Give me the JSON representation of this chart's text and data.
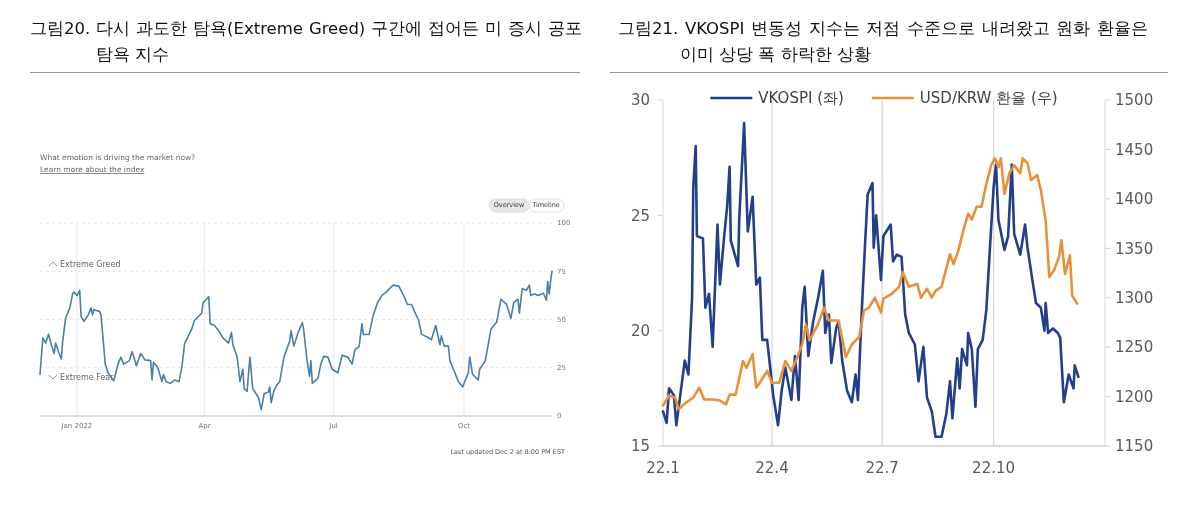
{
  "chart_data": [
    {
      "type": "line",
      "title": "그림20. 다시 과도한 탐욕(Extreme Greed) 구간에 접어든 미 증시 공포 탐욕 지수",
      "subtitle": "What emotion is driving the market now?",
      "annotations": [
        "Learn more about the index",
        "Overview",
        "Timeline",
        "Extreme Greed",
        "Extreme Fear",
        "Last updated Dec 2 at 8:00 PM EST"
      ],
      "x": [
        "2021-12-06",
        "2021-12-08",
        "2021-12-10",
        "2021-12-12",
        "2021-12-14",
        "2021-12-16",
        "2021-12-17",
        "2021-12-19",
        "2021-12-21",
        "2021-12-22",
        "2021-12-24",
        "2021-12-27",
        "2021-12-29",
        "2021-12-30",
        "2022-01-01",
        "2022-01-03",
        "2022-01-04",
        "2022-01-06",
        "2022-01-09",
        "2022-01-11",
        "2022-01-12",
        "2022-01-13",
        "2022-01-17",
        "2022-01-18",
        "2022-01-21",
        "2022-01-23",
        "2022-01-27",
        "2022-01-30",
        "2022-02-01",
        "2022-02-03",
        "2022-02-07",
        "2022-02-09",
        "2022-02-12",
        "2022-02-15",
        "2022-02-18",
        "2022-02-22",
        "2022-02-23",
        "2022-02-24",
        "2022-02-27",
        "2022-03-02",
        "2022-03-03",
        "2022-03-05",
        "2022-03-08",
        "2022-03-11",
        "2022-03-14",
        "2022-03-16",
        "2022-03-18",
        "2022-03-20",
        "2022-03-23",
        "2022-03-25",
        "2022-03-30",
        "2022-03-31",
        "2022-04-04",
        "2022-04-05",
        "2022-04-08",
        "2022-04-11",
        "2022-04-14",
        "2022-04-18",
        "2022-04-20",
        "2022-04-21",
        "2022-04-24",
        "2022-04-26",
        "2022-04-28",
        "2022-04-29",
        "2022-05-01",
        "2022-05-03",
        "2022-05-05",
        "2022-05-09",
        "2022-05-11",
        "2022-05-13",
        "2022-05-16",
        "2022-05-17",
        "2022-05-18",
        "2022-05-20",
        "2022-05-22",
        "2022-05-24",
        "2022-05-27",
        "2022-05-31",
        "2022-06-01",
        "2022-06-03",
        "2022-06-06",
        "2022-06-09",
        "2022-06-10",
        "2022-06-12",
        "2022-06-14",
        "2022-06-15",
        "2022-06-16",
        "2022-06-20",
        "2022-06-22",
        "2022-06-24",
        "2022-06-27",
        "2022-06-30",
        "2022-07-04",
        "2022-07-07",
        "2022-07-11",
        "2022-07-14",
        "2022-07-16",
        "2022-07-19",
        "2022-07-21",
        "2022-07-22",
        "2022-07-26",
        "2022-07-29",
        "2022-08-01",
        "2022-08-04",
        "2022-08-07",
        "2022-08-12",
        "2022-08-16",
        "2022-08-20",
        "2022-08-22",
        "2022-08-25",
        "2022-08-27",
        "2022-08-30",
        "2022-09-01",
        "2022-09-08",
        "2022-09-11",
        "2022-09-14",
        "2022-09-15",
        "2022-09-17",
        "2022-09-20",
        "2022-09-21",
        "2022-09-24",
        "2022-09-27",
        "2022-09-30",
        "2022-10-04",
        "2022-10-05",
        "2022-10-07",
        "2022-10-11",
        "2022-10-12",
        "2022-10-16",
        "2022-10-20",
        "2022-10-24",
        "2022-10-27",
        "2022-10-31",
        "2022-11-03",
        "2022-11-05",
        "2022-11-08",
        "2022-11-09",
        "2022-11-11",
        "2022-11-14",
        "2022-11-16",
        "2022-11-17",
        "2022-11-20",
        "2022-11-22",
        "2022-11-26",
        "2022-11-28",
        "2022-11-29",
        "2022-11-30",
        "2022-12-01",
        "2022-12-02"
      ],
      "series": [
        {
          "color": "#4a7fa8",
          "values": [
            21.5,
            40.5,
            37.8,
            42.4,
            36.9,
            32.4,
            37.8,
            33.3,
            29.6,
            38.7,
            50.5,
            56,
            63.3,
            64.2,
            62.4,
            65.1,
            51.5,
            49.1,
            52.4,
            56,
            52.4,
            55.1,
            54.2,
            52.4,
            26.9,
            22.4,
            18.2,
            26.9,
            30.5,
            26.9,
            28.7,
            33.3,
            26,
            32.4,
            29.1,
            28.7,
            18.7,
            27.8,
            25.1,
            17.8,
            21.5,
            17.8,
            16.9,
            18.7,
            17.8,
            25.1,
            37.8,
            40.5,
            45.1,
            49.6,
            53.3,
            58.7,
            61.8,
            47.8,
            46.9,
            44.2,
            40.5,
            37.8,
            43.3,
            36.9,
            30.5,
            17.8,
            24.2,
            14.2,
            12.7,
            30.5,
            14.2,
            9.6,
            3.3,
            11.5,
            12.4,
            15.1,
            6.9,
            13.3,
            16,
            17.8,
            30.5,
            38.7,
            44.2,
            36.2,
            43.3,
            48.4,
            44.2,
            30.5,
            20.5,
            28.7,
            16.9,
            19.6,
            26.9,
            30.9,
            30.5,
            24.2,
            22.4,
            31.5,
            30.5,
            26.9,
            34.2,
            36,
            47.8,
            42.2,
            42.2,
            52.4,
            58.7,
            62.4,
            64.2,
            67.8,
            67.3,
            61.5,
            57.8,
            57.8,
            54.2,
            49.6,
            42.4,
            39.6,
            46.9,
            36.9,
            41.5,
            36.2,
            36.2,
            28.7,
            23.3,
            17.8,
            15.1,
            22.4,
            30.5,
            21.5,
            18.7,
            24.2,
            28.7,
            45.1,
            48.7,
            60.5,
            57.8,
            50.5,
            58.7,
            60.5,
            53.3,
            66,
            65.1,
            67.8,
            62.4,
            63.3,
            62.4,
            63.6,
            60,
            69.6,
            63.3,
            69.6,
            75.1
          ]
        }
      ],
      "xlim": [
        "2021-12-06",
        "2022-12-02"
      ],
      "ylim": [
        0,
        100
      ],
      "xticks": [
        {
          "value": "2022-01-01",
          "label": "Jan 2022"
        },
        {
          "value": "2022-04-01",
          "label": "Apr"
        },
        {
          "value": "2022-07-01",
          "label": "Jul"
        },
        {
          "value": "2022-10-01",
          "label": "Oct"
        }
      ],
      "yticks": [
        0,
        25,
        50,
        75,
        100
      ],
      "grid": true
    },
    {
      "type": "line",
      "title": "그림21. VKOSPI 변동성 지수는 저점 수준으로 내려왔고 원화 환율은 이미 상당 폭 하락한 상황",
      "series": [
        {
          "name": "VKOSPI (좌)",
          "color": "#233f8a",
          "x": [
            "2022-01-01",
            "2022-01-04",
            "2022-01-06",
            "2022-01-10",
            "2022-01-12",
            "2022-01-15",
            "2022-01-19",
            "2022-01-22",
            "2022-01-25",
            "2022-01-26",
            "2022-01-28",
            "2022-01-29",
            "2022-02-03",
            "2022-02-05",
            "2022-02-08",
            "2022-02-11",
            "2022-02-15",
            "2022-02-17",
            "2022-02-20",
            "2022-02-23",
            "2022-02-25",
            "2022-02-26",
            "2022-03-04",
            "2022-03-05",
            "2022-03-09",
            "2022-03-12",
            "2022-03-16",
            "2022-03-19",
            "2022-03-22",
            "2022-03-24",
            "2022-03-28",
            "2022-04-02",
            "2022-04-06",
            "2022-04-09",
            "2022-04-12",
            "2022-04-17",
            "2022-04-20",
            "2022-04-23",
            "2022-04-26",
            "2022-04-28",
            "2022-05-01",
            "2022-05-05",
            "2022-05-09",
            "2022-05-13",
            "2022-05-15",
            "2022-05-18",
            "2022-05-20",
            "2022-05-24",
            "2022-05-26",
            "2022-05-29",
            "2022-06-02",
            "2022-06-06",
            "2022-06-09",
            "2022-06-11",
            "2022-06-14",
            "2022-06-17",
            "2022-06-19",
            "2022-06-23",
            "2022-06-24",
            "2022-06-26",
            "2022-06-30",
            "2022-07-02",
            "2022-07-08",
            "2022-07-10",
            "2022-07-13",
            "2022-07-17",
            "2022-07-20",
            "2022-07-23",
            "2022-07-28",
            "2022-07-31",
            "2022-08-04",
            "2022-08-07",
            "2022-08-11",
            "2022-08-14",
            "2022-08-19",
            "2022-08-23",
            "2022-08-26",
            "2022-08-28",
            "2022-09-01",
            "2022-09-03",
            "2022-09-05",
            "2022-09-09",
            "2022-09-10",
            "2022-09-13",
            "2022-09-16",
            "2022-09-18",
            "2022-09-22",
            "2022-09-25",
            "2022-09-28",
            "2022-10-01",
            "2022-10-03",
            "2022-10-05",
            "2022-10-10",
            "2022-10-13",
            "2022-10-16",
            "2022-10-18",
            "2022-10-23",
            "2022-10-27",
            "2022-10-29",
            "2022-11-02",
            "2022-11-05",
            "2022-11-09",
            "2022-11-12",
            "2022-11-13",
            "2022-11-15",
            "2022-11-19",
            "2022-11-23",
            "2022-11-25",
            "2022-11-28",
            "2022-12-02",
            "2022-12-06",
            "2022-12-07",
            "2022-12-10"
          ],
          "values": [
            16.5,
            16.0,
            17.5,
            17.2,
            15.9,
            17.1,
            18.7,
            18.1,
            21.4,
            26.2,
            28.0,
            24.1,
            24.0,
            21.0,
            21.6,
            19.3,
            24.6,
            22.0,
            23.8,
            25.4,
            27.1,
            23.9,
            22.8,
            24.9,
            29.0,
            24.3,
            25.8,
            22.0,
            22.3,
            19.6,
            19.6,
            17.2,
            15.9,
            17.4,
            18.4,
            17.0,
            18.9,
            17.0,
            21.0,
            21.9,
            18.9,
            20.4,
            21.4,
            22.6,
            19.9,
            20.7,
            18.6,
            20.1,
            20.4,
            18.7,
            17.4,
            16.9,
            18.1,
            17.0,
            20.7,
            23.9,
            25.9,
            26.4,
            23.6,
            25.0,
            22.2,
            24.1,
            24.6,
            23.0,
            23.3,
            23.2,
            20.7,
            19.9,
            19.4,
            17.8,
            19.3,
            17.1,
            16.5,
            15.4,
            15.4,
            16.4,
            17.8,
            16.2,
            18.8,
            17.5,
            19.2,
            18.5,
            19.9,
            19.2,
            16.7,
            19.2,
            19.6,
            20.9,
            23.6,
            26.2,
            27.2,
            24.8,
            23.5,
            24.1,
            27.2,
            24.2,
            23.3,
            24.6,
            23.6,
            22.2,
            21.2,
            21.0,
            20.0,
            21.2,
            19.9,
            20.1,
            19.9,
            19.7,
            16.9,
            18.1,
            17.5,
            18.5,
            18.0
          ]
        },
        {
          "name": "USD/KRW 환율 (우)",
          "color": "#e8913a",
          "axis": "y2",
          "x": [
            "2022-01-01",
            "2022-01-06",
            "2022-01-11",
            "2022-01-14",
            "2022-01-18",
            "2022-01-26",
            "2022-01-31",
            "2022-02-04",
            "2022-02-11",
            "2022-02-17",
            "2022-02-22",
            "2022-02-25",
            "2022-03-02",
            "2022-03-08",
            "2022-03-11",
            "2022-03-16",
            "2022-03-19",
            "2022-03-23",
            "2022-03-28",
            "2022-04-01",
            "2022-04-07",
            "2022-04-12",
            "2022-04-17",
            "2022-04-22",
            "2022-04-26",
            "2022-04-29",
            "2022-05-02",
            "2022-05-09",
            "2022-05-14",
            "2022-05-18",
            "2022-05-26",
            "2022-06-01",
            "2022-06-06",
            "2022-06-12",
            "2022-06-16",
            "2022-06-20",
            "2022-06-25",
            "2022-06-30",
            "2022-07-02",
            "2022-07-09",
            "2022-07-15",
            "2022-07-18",
            "2022-07-23",
            "2022-07-30",
            "2022-08-02",
            "2022-08-07",
            "2022-08-11",
            "2022-08-14",
            "2022-08-19",
            "2022-08-26",
            "2022-08-29",
            "2022-09-02",
            "2022-09-06",
            "2022-09-10",
            "2022-09-13",
            "2022-09-17",
            "2022-09-21",
            "2022-09-25",
            "2022-09-29",
            "2022-10-02",
            "2022-10-05",
            "2022-10-07",
            "2022-10-10",
            "2022-10-14",
            "2022-10-18",
            "2022-10-23",
            "2022-10-25",
            "2022-10-29",
            "2022-11-01",
            "2022-11-06",
            "2022-11-09",
            "2022-11-13",
            "2022-11-16",
            "2022-11-20",
            "2022-11-24",
            "2022-11-26",
            "2022-11-29",
            "2022-12-03",
            "2022-12-05",
            "2022-12-09"
          ],
          "values": [
            1191,
            1201,
            1199,
            1187,
            1192,
            1199,
            1209,
            1197,
            1197,
            1196,
            1192,
            1202,
            1202,
            1236,
            1229,
            1243,
            1209,
            1216,
            1226,
            1214,
            1214,
            1236,
            1226,
            1240,
            1253,
            1273,
            1257,
            1273,
            1290,
            1277,
            1277,
            1240,
            1253,
            1260,
            1287,
            1290,
            1300,
            1285,
            1299,
            1304,
            1311,
            1326,
            1311,
            1314,
            1300,
            1309,
            1300,
            1307,
            1311,
            1344,
            1334,
            1348,
            1368,
            1385,
            1379,
            1392,
            1392,
            1415,
            1434,
            1441,
            1432,
            1441,
            1405,
            1426,
            1434,
            1426,
            1441,
            1436,
            1419,
            1424,
            1409,
            1378,
            1321,
            1328,
            1341,
            1358,
            1324,
            1343,
            1302,
            1294
          ]
        }
      ],
      "xlim": [
        "2022-01-01",
        "2023-01-01"
      ],
      "ylim": [
        15,
        30
      ],
      "y2lim": [
        1150,
        1500
      ],
      "xticks": [
        {
          "value": "2022-01-01",
          "label": "22.1"
        },
        {
          "value": "2022-04-01",
          "label": "22.4"
        },
        {
          "value": "2022-07-01",
          "label": "22.7"
        },
        {
          "value": "2022-10-01",
          "label": "22.10"
        }
      ],
      "yticks": [
        15,
        20,
        25,
        30
      ],
      "y2ticks": [
        1150,
        1200,
        1250,
        1300,
        1350,
        1400,
        1450,
        1500
      ],
      "grid": "x",
      "legend": "top"
    }
  ]
}
